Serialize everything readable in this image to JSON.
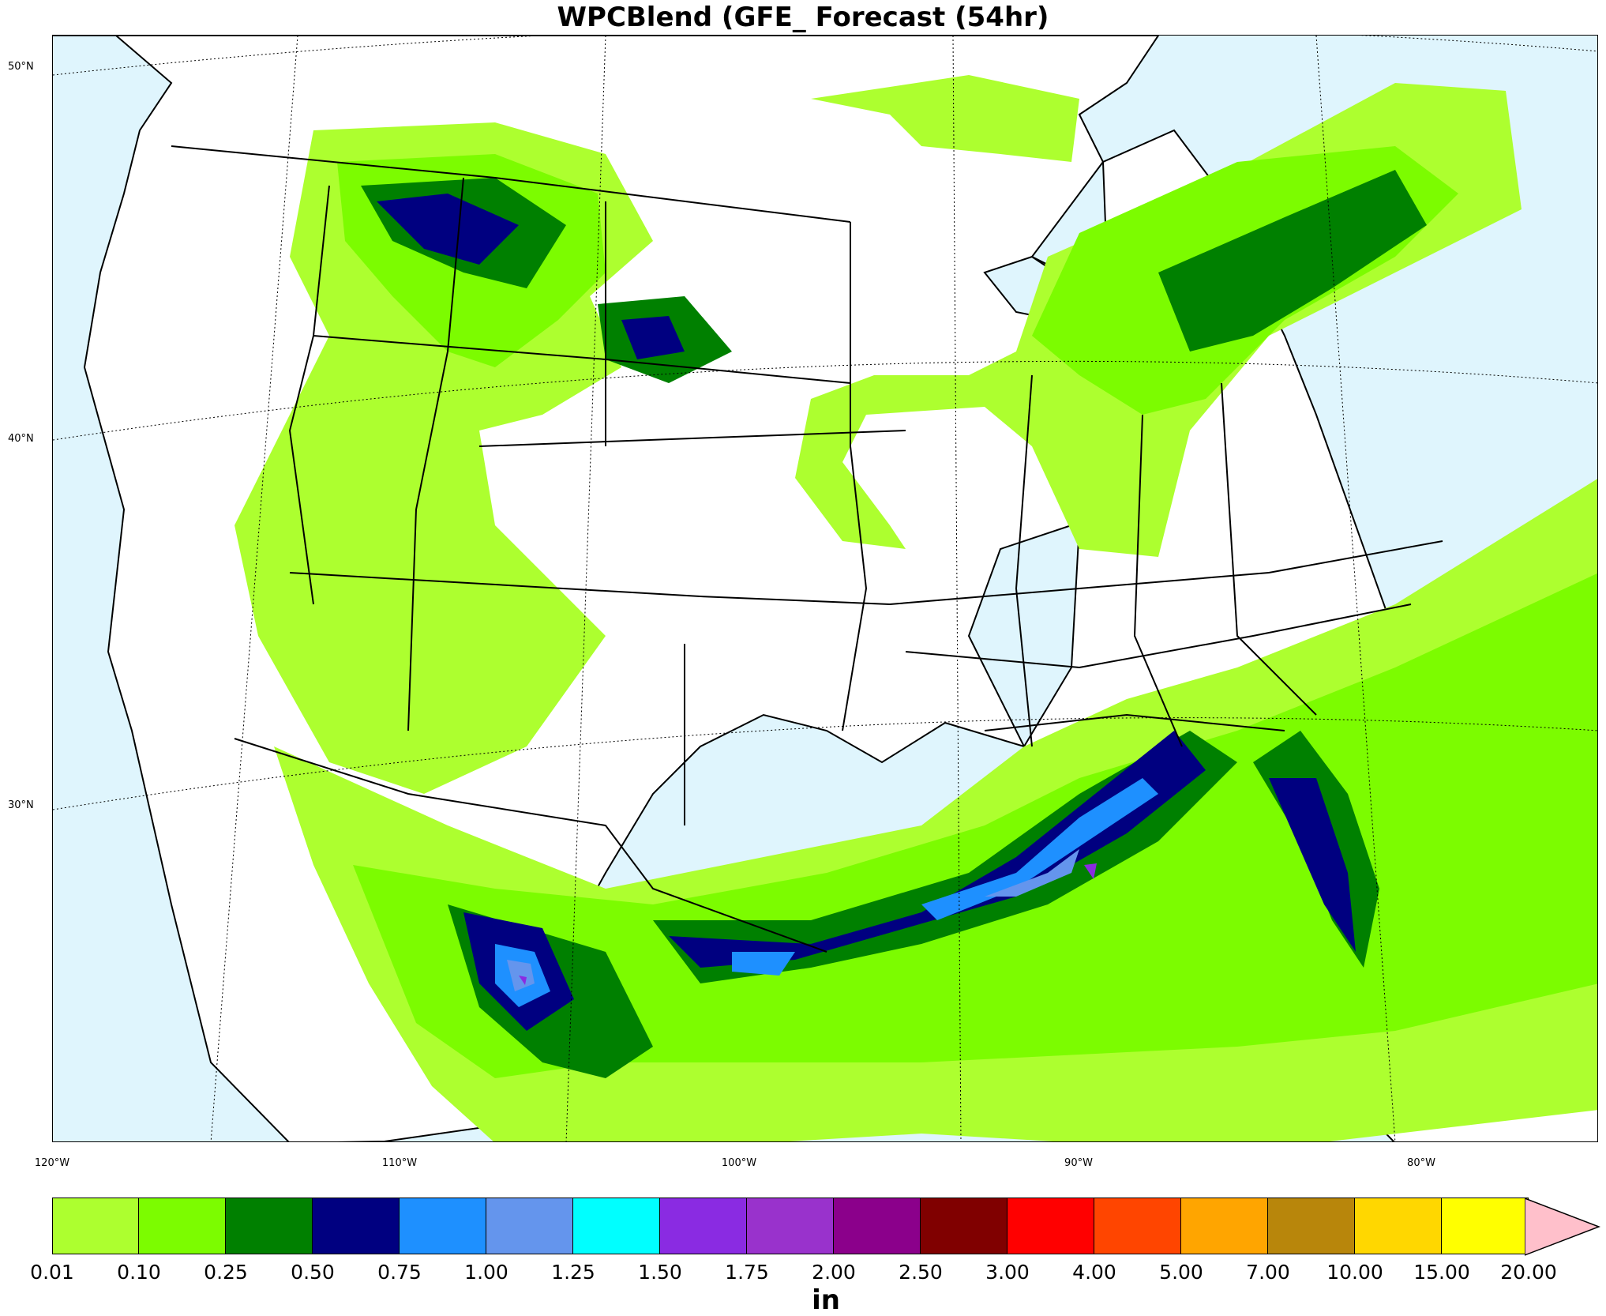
{
  "title": "WPCBlend (GFE_ Forecast (54hr)",
  "lat_labels": [
    "50°N",
    "40°N",
    "30°N"
  ],
  "lon_labels": [
    "120°W",
    "110°W",
    "100°W",
    "90°W",
    "80°W"
  ],
  "colorbar": {
    "unit": "in",
    "ticks": [
      "0.01",
      "0.10",
      "0.25",
      "0.50",
      "0.75",
      "1.00",
      "1.25",
      "1.50",
      "1.75",
      "2.00",
      "2.50",
      "3.00",
      "4.00",
      "5.00",
      "7.00",
      "10.00",
      "15.00",
      "20.00"
    ],
    "colors": [
      "#adff2f",
      "#7cfc00",
      "#008000",
      "#000080",
      "#1e90ff",
      "#6495ed",
      "#00ffff",
      "#8a2be2",
      "#9932cc",
      "#8b008b",
      "#800000",
      "#ff0000",
      "#ff4500",
      "#ffa500",
      "#b8860b",
      "#ffd700",
      "#ffff00"
    ],
    "extend_color": "#ffc0cb"
  },
  "colors": {
    "ocean": "#dff5fd",
    "land": "#ffffff"
  }
}
